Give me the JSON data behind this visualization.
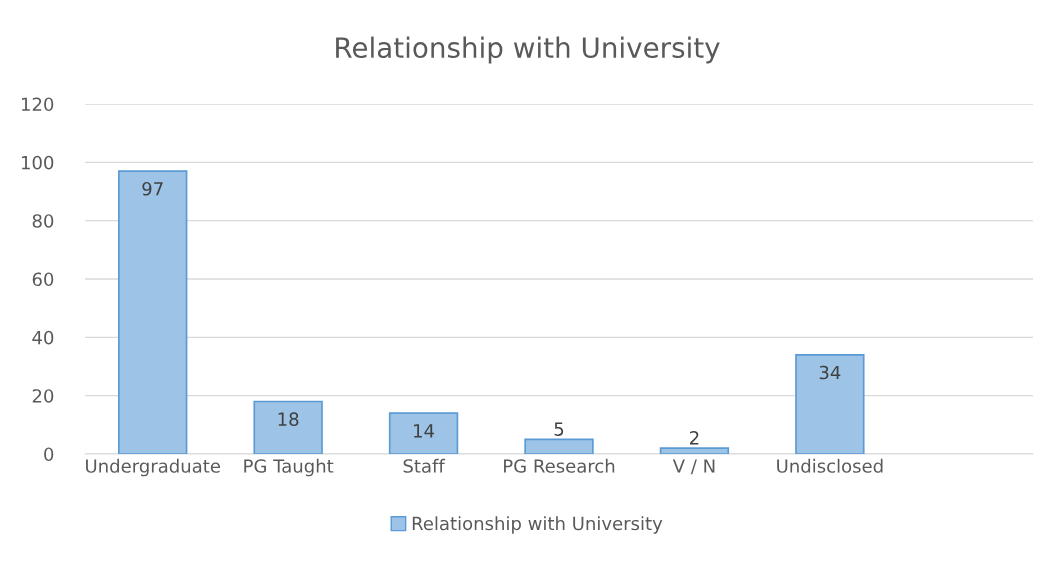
{
  "chart_data": {
    "type": "bar",
    "title": "Relationship with University",
    "categories": [
      "Undergraduate",
      "PG Taught",
      "Staff",
      "PG Research",
      "V / N",
      "Undisclosed",
      null
    ],
    "series": [
      {
        "name": "Relationship with University",
        "color": "#9dc3e6",
        "values": [
          97,
          18,
          14,
          5,
          2,
          34,
          null
        ]
      }
    ],
    "ylim": [
      0,
      120
    ],
    "yticks": [
      0,
      20,
      40,
      60,
      80,
      100,
      120
    ],
    "grid": "y",
    "legend": "bottom",
    "data_labels": true
  }
}
